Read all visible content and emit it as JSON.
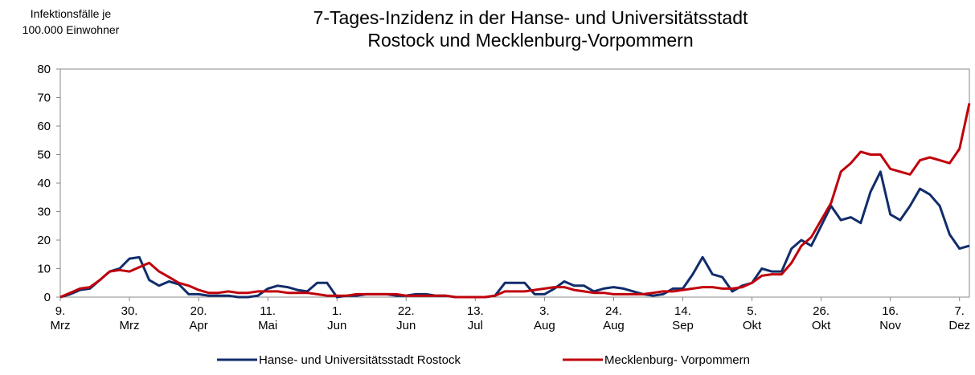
{
  "chart_data": {
    "type": "line",
    "title": "7-Tages-Inzidenz in der Hanse- und Universitätsstadt\nRostock und Mecklenburg-Vorpommern",
    "y_label": "Infektionsfälle je\n100.000 Einwohner",
    "categories": [
      "9.\nMrz",
      null,
      null,
      null,
      null,
      null,
      null,
      "30.\nMrz",
      null,
      null,
      null,
      null,
      null,
      null,
      "20.\nApr",
      null,
      null,
      null,
      null,
      null,
      null,
      "11.\nMai",
      null,
      null,
      null,
      null,
      null,
      null,
      "1.\nJun",
      null,
      null,
      null,
      null,
      null,
      null,
      "22.\nJun",
      null,
      null,
      null,
      null,
      null,
      null,
      "13.\nJul",
      null,
      null,
      null,
      null,
      null,
      null,
      "3.\nAug",
      null,
      null,
      null,
      null,
      null,
      null,
      "24.\nAug",
      null,
      null,
      null,
      null,
      null,
      null,
      "14.\nSep",
      null,
      null,
      null,
      null,
      null,
      null,
      "5.\nOkt",
      null,
      null,
      null,
      null,
      null,
      null,
      "26.\nOkt",
      null,
      null,
      null,
      null,
      null,
      null,
      "16.\nNov",
      null,
      null,
      null,
      null,
      null,
      null,
      "7.\nDez",
      null
    ],
    "series": [
      {
        "name": "Hanse- und Universitätsstadt Rostock",
        "color": "#112d6b",
        "values": [
          0,
          1,
          2.5,
          3,
          6,
          9,
          10,
          13.5,
          14,
          6,
          4,
          5.5,
          4.5,
          1,
          1,
          0.5,
          0.5,
          0.5,
          0,
          0,
          0.5,
          3,
          4,
          3.5,
          2.5,
          2,
          5,
          5,
          0,
          0.5,
          0.5,
          1,
          1,
          1,
          0.5,
          0.5,
          1,
          1,
          0.5,
          0.5,
          0,
          0,
          0,
          0,
          0.5,
          5,
          5,
          5,
          1,
          1,
          3,
          5.5,
          4,
          4,
          2,
          3,
          3.5,
          3,
          2,
          1,
          0.5,
          1,
          3,
          3,
          8,
          14,
          8,
          7,
          2,
          4,
          5,
          10,
          9,
          9,
          17,
          20,
          18,
          25,
          32,
          27,
          28,
          26,
          37,
          44,
          29,
          27,
          32,
          38,
          36,
          32,
          22,
          17,
          18
        ]
      },
      {
        "name": "Mecklenburg- Vorpommern",
        "color": "#c0000b",
        "values": [
          0,
          1.5,
          3,
          3.5,
          6,
          9,
          9.5,
          9,
          10.5,
          12,
          9,
          7,
          5,
          4,
          2.5,
          1.5,
          1.5,
          2,
          1.5,
          1.5,
          2,
          2,
          2,
          1.5,
          1.5,
          1.5,
          1,
          0.5,
          0.5,
          0.5,
          1,
          1,
          1,
          1,
          1,
          0.5,
          0.5,
          0.5,
          0.5,
          0.5,
          0,
          0,
          0,
          0,
          0.5,
          2,
          2,
          2,
          2.5,
          3,
          3.5,
          3.5,
          2.5,
          2,
          1.5,
          1.5,
          1,
          1,
          1,
          1,
          1.5,
          2,
          2,
          2.5,
          3,
          3.5,
          3.5,
          3,
          3,
          3.5,
          5,
          7.5,
          8,
          8,
          12,
          18,
          21,
          27,
          33,
          44,
          47,
          51,
          50,
          50,
          45,
          44,
          43,
          48,
          49,
          48,
          47,
          52,
          68
        ]
      }
    ],
    "ylim": [
      0,
      80
    ],
    "yticks": [
      0,
      10,
      20,
      30,
      40,
      50,
      60,
      70,
      80
    ],
    "grid": false,
    "legend": "bottom"
  }
}
